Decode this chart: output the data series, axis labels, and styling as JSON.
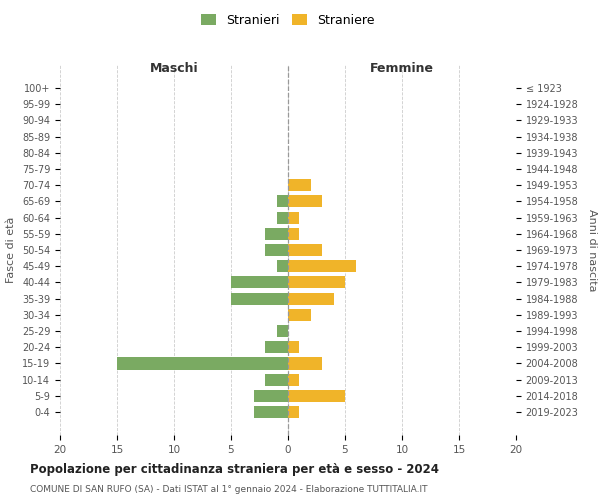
{
  "age_groups": [
    "100+",
    "95-99",
    "90-94",
    "85-89",
    "80-84",
    "75-79",
    "70-74",
    "65-69",
    "60-64",
    "55-59",
    "50-54",
    "45-49",
    "40-44",
    "35-39",
    "30-34",
    "25-29",
    "20-24",
    "15-19",
    "10-14",
    "5-9",
    "0-4"
  ],
  "birth_years": [
    "≤ 1923",
    "1924-1928",
    "1929-1933",
    "1934-1938",
    "1939-1943",
    "1944-1948",
    "1949-1953",
    "1954-1958",
    "1959-1963",
    "1964-1968",
    "1969-1973",
    "1974-1978",
    "1979-1983",
    "1984-1988",
    "1989-1993",
    "1994-1998",
    "1999-2003",
    "2004-2008",
    "2009-2013",
    "2014-2018",
    "2019-2023"
  ],
  "males": [
    0,
    0,
    0,
    0,
    0,
    0,
    0,
    1,
    1,
    2,
    2,
    1,
    5,
    5,
    0,
    1,
    2,
    15,
    2,
    3,
    3
  ],
  "females": [
    0,
    0,
    0,
    0,
    0,
    0,
    2,
    3,
    1,
    1,
    3,
    6,
    5,
    4,
    2,
    0,
    1,
    3,
    1,
    5,
    1
  ],
  "male_color": "#7aaa62",
  "female_color": "#f0b429",
  "title": "Popolazione per cittadinanza straniera per età e sesso - 2024",
  "subtitle": "COMUNE DI SAN RUFO (SA) - Dati ISTAT al 1° gennaio 2024 - Elaborazione TUTTITALIA.IT",
  "xlabel_left": "Maschi",
  "xlabel_right": "Femmine",
  "ylabel_left": "Fasce di età",
  "ylabel_right": "Anni di nascita",
  "legend_male": "Stranieri",
  "legend_female": "Straniere",
  "xlim": 20,
  "bg_color": "#ffffff",
  "grid_color": "#cccccc",
  "bar_height": 0.75
}
